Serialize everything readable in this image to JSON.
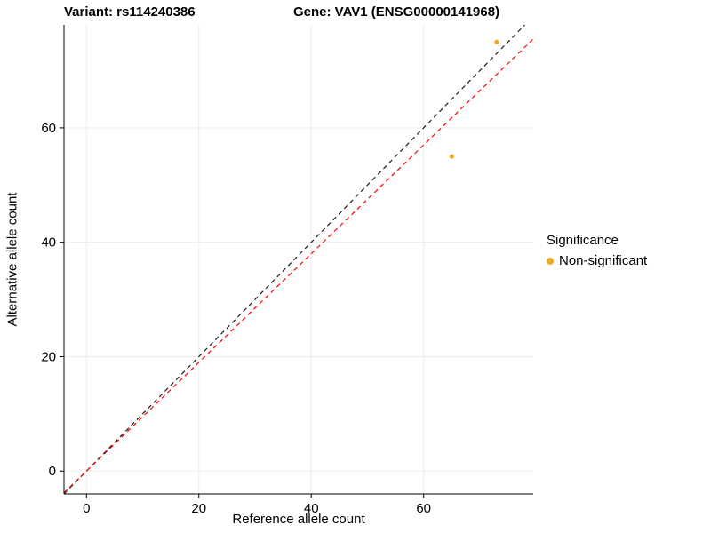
{
  "titles": {
    "variant": "Variant: rs114240386",
    "gene": "Gene: VAV1 (ENSG00000141968)"
  },
  "chart_data": {
    "type": "scatter",
    "title_left": "Variant: rs114240386",
    "title_right": "Gene: VAV1 (ENSG00000141968)",
    "xlabel": "Reference allele count",
    "ylabel": "Alternative allele count",
    "xlim": [
      -4,
      79.5
    ],
    "ylim": [
      -4,
      78
    ],
    "xticks": [
      0,
      20,
      40,
      60
    ],
    "yticks": [
      0,
      20,
      40,
      60
    ],
    "grid": true,
    "grid_color": "#ededed",
    "series": [
      {
        "name": "Non-significant",
        "color": "#F5A623",
        "points": [
          [
            65,
            55
          ],
          [
            73,
            75
          ]
        ]
      }
    ],
    "lines": [
      {
        "name": "identity-line",
        "slope": 1,
        "intercept": 0,
        "color": "#1a1a1a",
        "dash": "5 4"
      },
      {
        "name": "fit-line",
        "slope": 0.95,
        "intercept": 0,
        "color": "#ff0000",
        "dash": "5 4"
      }
    ],
    "legend": {
      "title": "Significance",
      "position": "right",
      "items": [
        {
          "label": "Non-significant",
          "color": "#F5A623"
        }
      ]
    }
  }
}
